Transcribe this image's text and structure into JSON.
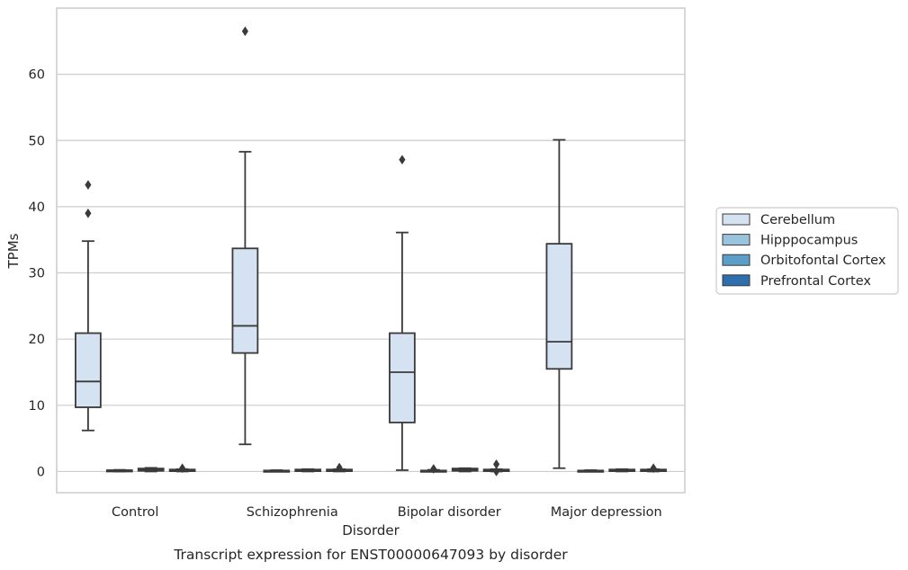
{
  "chart_data": {
    "type": "boxplot",
    "caption": "Transcript expression for ENST00000647093 by disorder",
    "xlabel": "Disorder",
    "ylabel": "TPMs",
    "ylim": [
      -3.2,
      70
    ],
    "yticks": [
      0,
      10,
      20,
      30,
      40,
      50,
      60
    ],
    "grid": "horizontal",
    "legend_position": "right",
    "categories": [
      "Control",
      "Schizophrenia",
      "Bipolar disorder",
      "Major depression"
    ],
    "series": [
      {
        "name": "Cerebellum",
        "color": "#d4e2f1",
        "boxes": [
          {
            "whisker_low": 6.2,
            "q1": 9.7,
            "median": 13.6,
            "q3": 20.9,
            "whisker_high": 34.8,
            "outliers": [
              39.0,
              43.3
            ]
          },
          {
            "whisker_low": 4.1,
            "q1": 17.9,
            "median": 22.0,
            "q3": 33.7,
            "whisker_high": 48.3,
            "outliers": [
              66.5
            ]
          },
          {
            "whisker_low": 0.2,
            "q1": 7.4,
            "median": 15.0,
            "q3": 20.9,
            "whisker_high": 36.1,
            "outliers": [
              47.1
            ]
          },
          {
            "whisker_low": 0.5,
            "q1": 15.5,
            "median": 19.6,
            "q3": 34.4,
            "whisker_high": 50.1,
            "outliers": []
          }
        ]
      },
      {
        "name": "Hipppocampus",
        "color": "#9ac3dd",
        "boxes": [
          {
            "whisker_low": 0.0,
            "q1": 0.05,
            "median": 0.1,
            "q3": 0.2,
            "whisker_high": 0.25,
            "outliers": []
          },
          {
            "whisker_low": 0.0,
            "q1": 0.05,
            "median": 0.1,
            "q3": 0.15,
            "whisker_high": 0.2,
            "outliers": []
          },
          {
            "whisker_low": 0.0,
            "q1": 0.05,
            "median": 0.1,
            "q3": 0.15,
            "whisker_high": 0.25,
            "outliers": [
              0.4
            ]
          },
          {
            "whisker_low": 0.0,
            "q1": 0.05,
            "median": 0.1,
            "q3": 0.15,
            "whisker_high": 0.2,
            "outliers": []
          }
        ]
      },
      {
        "name": "Orbitofontal Cortex",
        "color": "#5a9ec9",
        "boxes": [
          {
            "whisker_low": 0.0,
            "q1": 0.1,
            "median": 0.25,
            "q3": 0.45,
            "whisker_high": 0.55,
            "outliers": []
          },
          {
            "whisker_low": 0.0,
            "q1": 0.05,
            "median": 0.15,
            "q3": 0.3,
            "whisker_high": 0.35,
            "outliers": []
          },
          {
            "whisker_low": 0.0,
            "q1": 0.1,
            "median": 0.25,
            "q3": 0.45,
            "whisker_high": 0.5,
            "outliers": []
          },
          {
            "whisker_low": 0.0,
            "q1": 0.05,
            "median": 0.15,
            "q3": 0.3,
            "whisker_high": 0.35,
            "outliers": []
          }
        ]
      },
      {
        "name": "Prefrontal Cortex",
        "color": "#2d6fad",
        "boxes": [
          {
            "whisker_low": 0.0,
            "q1": 0.05,
            "median": 0.15,
            "q3": 0.3,
            "whisker_high": 0.35,
            "outliers": [
              0.5
            ]
          },
          {
            "whisker_low": 0.0,
            "q1": 0.05,
            "median": 0.15,
            "q3": 0.3,
            "whisker_high": 0.35,
            "outliers": [
              0.6
            ]
          },
          {
            "whisker_low": 0.0,
            "q1": 0.05,
            "median": 0.15,
            "q3": 0.3,
            "whisker_high": 0.35,
            "outliers": [
              1.1,
              0.0
            ]
          },
          {
            "whisker_low": 0.0,
            "q1": 0.05,
            "median": 0.15,
            "q3": 0.3,
            "whisker_high": 0.35,
            "outliers": [
              0.5
            ]
          }
        ]
      }
    ]
  }
}
